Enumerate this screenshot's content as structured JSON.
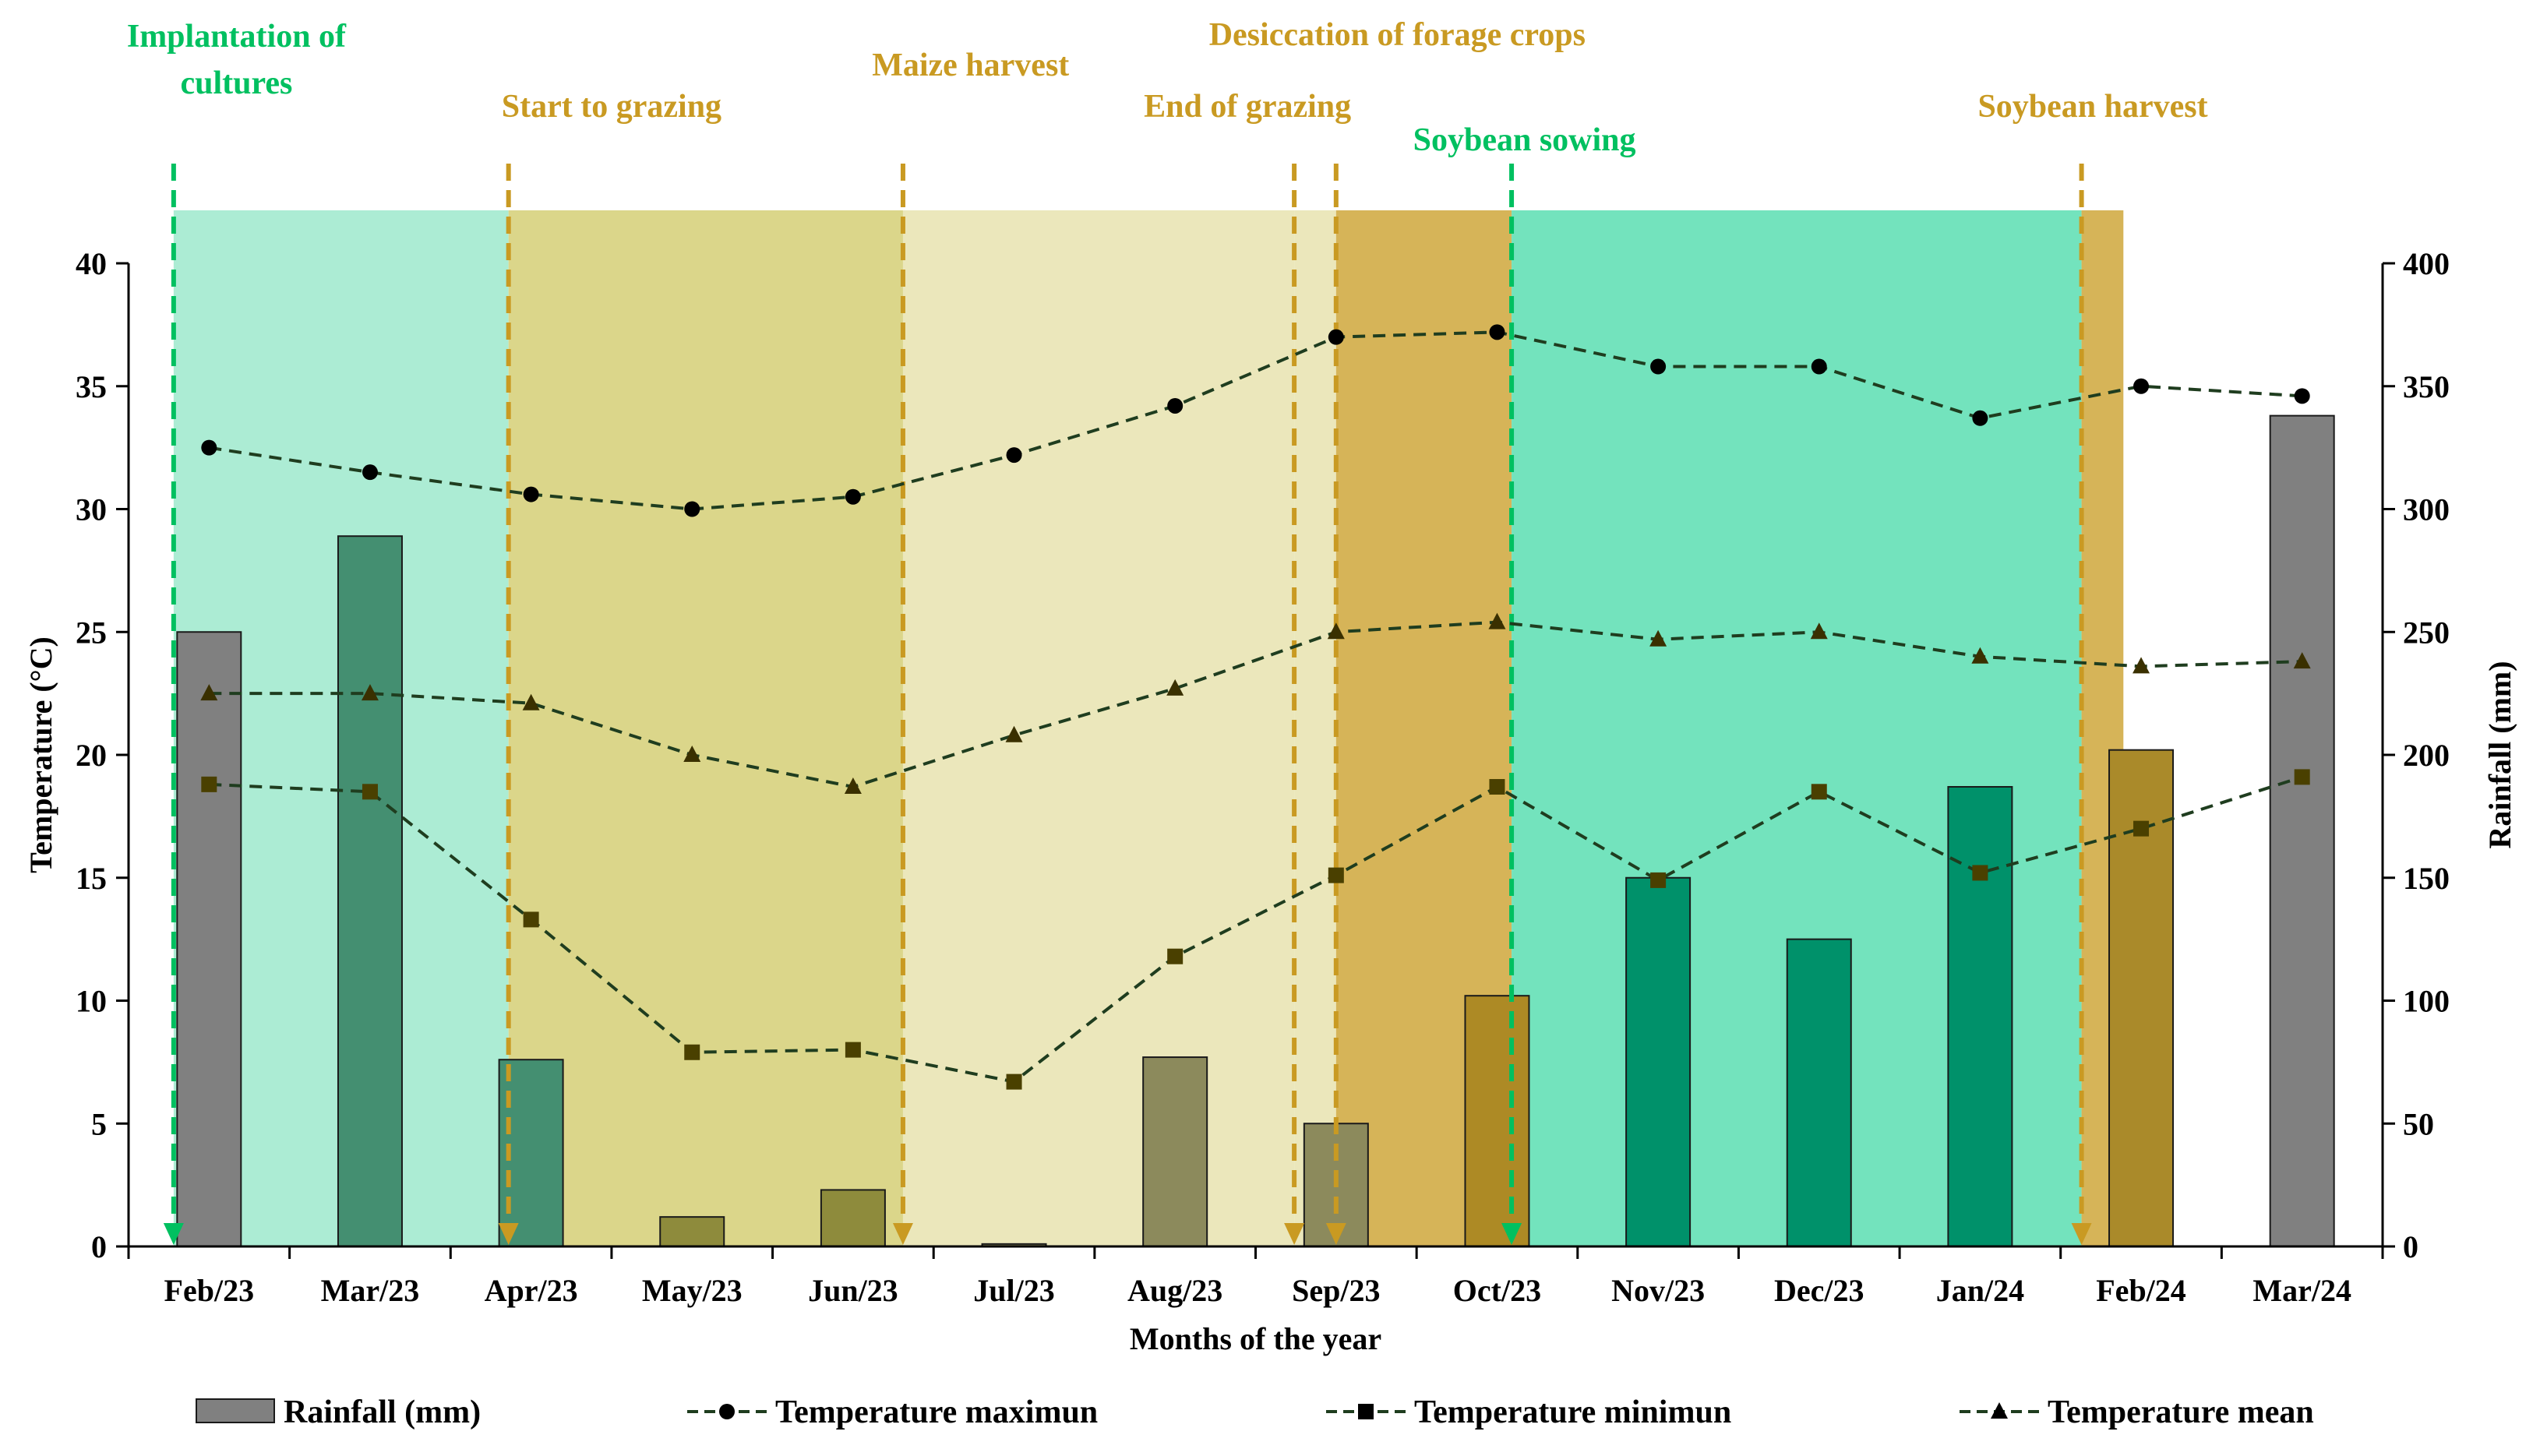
{
  "chart_data": {
    "type": "bar",
    "categories": [
      "Feb/23",
      "Mar/23",
      "Apr/23",
      "May/23",
      "Jun/23",
      "Jul/23",
      "Aug/23",
      "Sep/23",
      "Oct/23",
      "Nov/23",
      "Dec/23",
      "Jan/24",
      "Feb/24",
      "Mar/24"
    ],
    "xlabel": "Months of the year",
    "ylabel": "Temperature (°C)",
    "y2label": "Rainfall (mm)",
    "ylim": [
      0,
      40
    ],
    "y2lim": [
      0,
      400
    ],
    "yticks": [
      0,
      5,
      10,
      15,
      20,
      25,
      30,
      35,
      40
    ],
    "y2ticks": [
      0,
      50,
      100,
      150,
      200,
      250,
      300,
      350,
      400
    ],
    "grid": false,
    "legend_position": "bottom",
    "series": [
      {
        "name": "Rainfall (mm)",
        "type": "bar",
        "axis": "right",
        "values": [
          250,
          289,
          76,
          12,
          23,
          1,
          77,
          50,
          102,
          150,
          125,
          187,
          202,
          338
        ]
      },
      {
        "name": "Temperature maximun",
        "type": "line",
        "marker": "circle",
        "axis": "left",
        "values": [
          32.5,
          31.5,
          30.6,
          30.0,
          30.5,
          32.2,
          34.2,
          37.0,
          37.2,
          35.8,
          35.8,
          33.7,
          35.0,
          34.6
        ]
      },
      {
        "name": "Temperature minimun",
        "type": "line",
        "marker": "square",
        "axis": "left",
        "values": [
          18.8,
          18.5,
          13.3,
          7.9,
          8.0,
          6.7,
          11.8,
          15.1,
          18.7,
          14.9,
          18.5,
          15.2,
          17.0,
          19.1
        ]
      },
      {
        "name": "Temperature mean",
        "type": "line",
        "marker": "triangle",
        "axis": "left",
        "values": [
          22.5,
          22.5,
          22.1,
          20.0,
          18.7,
          20.8,
          22.7,
          25.0,
          25.4,
          24.7,
          25.0,
          24.0,
          23.6,
          23.8
        ]
      }
    ],
    "phases": [
      {
        "from": -0.22,
        "to": 1.86,
        "color": "#acecd4"
      },
      {
        "from": 1.86,
        "to": 4.31,
        "color": "#dbd68a"
      },
      {
        "from": 4.31,
        "to": 6.74,
        "color": "#ebe7bb"
      },
      {
        "from": 6.74,
        "to": 7.0,
        "color": "#ebe7bb"
      },
      {
        "from": 7.0,
        "to": 8.09,
        "color": "#d6b458"
      },
      {
        "from": 8.09,
        "to": 11.63,
        "color": "#73e3bd"
      },
      {
        "from": 11.63,
        "to": 11.89,
        "color": "#d6b458"
      }
    ],
    "bar_colors": [
      "#808080",
      "#448f71",
      "#448f71",
      "#8e8b3c",
      "#8e8b3c",
      "#8c8a5c",
      "#8c8a5c",
      "#8c8a5c",
      "#ad8a25",
      "#00916a",
      "#00916a",
      "#00916a",
      "#aa8a2a",
      "#808080"
    ],
    "events": [
      {
        "label": "Implantation of cultures",
        "lines": [
          "Implantation of",
          "cultures"
        ],
        "x": -0.22,
        "color": "#00c060",
        "label_x": 0.17,
        "label_y": [
          60,
          120
        ]
      },
      {
        "label": "Start to grazing",
        "lines": [
          "Start to grazing"
        ],
        "x": 1.86,
        "color": "#c99a22",
        "label_x": 2.5,
        "label_y": [
          150
        ]
      },
      {
        "label": "Maize harvest",
        "lines": [
          "Maize harvest"
        ],
        "x": 4.31,
        "color": "#c99a22",
        "label_x": 4.73,
        "label_y": [
          97
        ]
      },
      {
        "label": "Desiccation of forage crops",
        "lines": [
          "Desiccation of forage crops"
        ],
        "x": 7.0,
        "color": "#c99a22",
        "label_x": 7.38,
        "label_y": [
          58
        ]
      },
      {
        "label": "End of grazing",
        "lines": [
          "End of grazing"
        ],
        "x": 6.74,
        "color": "#c99a22",
        "label_x": 6.45,
        "label_y": [
          150
        ]
      },
      {
        "label": "Soybean sowing",
        "lines": [
          "Soybean sowing"
        ],
        "x": 8.09,
        "color": "#00c060",
        "label_x": 8.17,
        "label_y": [
          193
        ]
      },
      {
        "label": "Soybean harvest",
        "lines": [
          "Soybean harvest"
        ],
        "x": 11.63,
        "color": "#c99a22",
        "label_x": 11.7,
        "label_y": [
          150
        ]
      }
    ],
    "colors": {
      "axis": "#000000",
      "line": "#1f3d1f",
      "temp_marker": "#000000",
      "min_marker": "#4a4000",
      "mean_marker": "#3a3000",
      "legend_bar": "#808080"
    }
  }
}
